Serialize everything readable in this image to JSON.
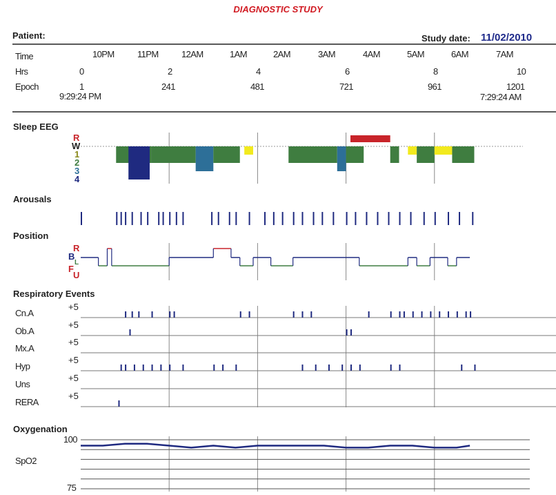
{
  "report_title": "DIAGNOSTIC STUDY",
  "patient_label": "Patient:",
  "study_date_label": "Study date:",
  "study_date": "11/02/2010",
  "timeline": {
    "row_labels": {
      "time": "Time",
      "hrs": "Hrs",
      "epoch": "Epoch"
    },
    "clock": [
      "10PM",
      "11PM",
      "12AM",
      "1AM",
      "2AM",
      "3AM",
      "4AM",
      "5AM",
      "6AM",
      "7AM"
    ],
    "hours": [
      "0",
      "2",
      "4",
      "6",
      "8",
      "10"
    ],
    "epochs": [
      "1",
      "241",
      "481",
      "721",
      "961",
      "1201"
    ],
    "start_time": "9:29:24 PM",
    "end_time": "7:29:24 AM"
  },
  "sections": {
    "sleep_eeg": "Sleep EEG",
    "arousals": "Arousals",
    "position": "Position",
    "respiratory": "Respiratory Events",
    "oxygenation": "Oxygenation"
  },
  "colors": {
    "red": "#c8242a",
    "navy": "#1f2a80",
    "green": "#3f7d40",
    "blue": "#2d6f98",
    "yellow": "#f2ea1e",
    "olive": "#8a8a1c",
    "grid": "#888888",
    "title": "#d11a22"
  },
  "chart_data": [
    {
      "type": "area",
      "title": "Sleep EEG",
      "ylabels": [
        "R",
        "W",
        "1",
        "2",
        "3",
        "4"
      ],
      "xlim": [
        0,
        10
      ],
      "xlabel": "Hrs",
      "segments": [
        {
          "from": 0.8,
          "to": 1.6,
          "stage": "2"
        },
        {
          "from": 1.08,
          "to": 1.56,
          "stage": "4"
        },
        {
          "from": 1.6,
          "to": 2.6,
          "stage": "2"
        },
        {
          "from": 2.6,
          "to": 3.0,
          "stage": "3"
        },
        {
          "from": 3.0,
          "to": 3.6,
          "stage": "2"
        },
        {
          "from": 3.7,
          "to": 3.9,
          "stage": "1"
        },
        {
          "from": 4.7,
          "to": 5.8,
          "stage": "2"
        },
        {
          "from": 5.8,
          "to": 6.0,
          "stage": "3"
        },
        {
          "from": 6.0,
          "to": 6.4,
          "stage": "2"
        },
        {
          "from": 6.1,
          "to": 7.0,
          "stage": "R"
        },
        {
          "from": 7.0,
          "to": 7.2,
          "stage": "2"
        },
        {
          "from": 7.4,
          "to": 7.6,
          "stage": "1"
        },
        {
          "from": 7.6,
          "to": 8.0,
          "stage": "2"
        },
        {
          "from": 8.0,
          "to": 8.4,
          "stage": "1"
        },
        {
          "from": 8.4,
          "to": 8.9,
          "stage": "2"
        }
      ]
    },
    {
      "type": "bar",
      "title": "Arousals",
      "xlabel": "Hrs",
      "xlim": [
        0,
        10
      ],
      "events": [
        0.0,
        0.8,
        0.9,
        1.0,
        1.15,
        1.35,
        1.5,
        1.75,
        1.85,
        2.0,
        2.15,
        2.3,
        2.95,
        3.1,
        3.35,
        3.5,
        3.8,
        4.15,
        4.35,
        4.55,
        4.8,
        5.0,
        5.25,
        5.45,
        5.7,
        6.0,
        6.2,
        6.45,
        6.7,
        6.95,
        7.2,
        7.45,
        7.75,
        8.0,
        8.3,
        8.55,
        8.85
      ]
    },
    {
      "type": "line",
      "title": "Position",
      "ylabels": [
        "R",
        "B",
        "L",
        "F",
        "U"
      ],
      "xlabel": "Hrs",
      "xlim": [
        0,
        10
      ],
      "steps": [
        {
          "from": 0.0,
          "to": 0.4,
          "pos": "B"
        },
        {
          "from": 0.4,
          "to": 0.6,
          "pos": "L"
        },
        {
          "from": 0.6,
          "to": 0.7,
          "pos": "R"
        },
        {
          "from": 0.7,
          "to": 2.0,
          "pos": "L"
        },
        {
          "from": 2.0,
          "to": 3.0,
          "pos": "B"
        },
        {
          "from": 3.0,
          "to": 3.4,
          "pos": "R"
        },
        {
          "from": 3.4,
          "to": 3.6,
          "pos": "B"
        },
        {
          "from": 3.6,
          "to": 3.9,
          "pos": "L"
        },
        {
          "from": 3.9,
          "to": 4.3,
          "pos": "B"
        },
        {
          "from": 4.3,
          "to": 4.8,
          "pos": "L"
        },
        {
          "from": 4.8,
          "to": 6.3,
          "pos": "B"
        },
        {
          "from": 6.3,
          "to": 7.4,
          "pos": "L"
        },
        {
          "from": 7.4,
          "to": 7.6,
          "pos": "B"
        },
        {
          "from": 7.6,
          "to": 7.9,
          "pos": "L"
        },
        {
          "from": 7.9,
          "to": 8.3,
          "pos": "B"
        },
        {
          "from": 8.3,
          "to": 8.5,
          "pos": "L"
        },
        {
          "from": 8.5,
          "to": 8.8,
          "pos": "B"
        }
      ]
    },
    {
      "type": "bar",
      "title": "Respiratory Events",
      "xlabel": "Hrs",
      "xlim": [
        0,
        10
      ],
      "scale_label": "+5",
      "series": [
        {
          "name": "Cn.A",
          "events": [
            1.0,
            1.15,
            1.3,
            1.6,
            2.0,
            2.1,
            3.6,
            3.8,
            4.8,
            5.0,
            5.2,
            6.5,
            7.0,
            7.2,
            7.3,
            7.5,
            7.7,
            7.9,
            8.1,
            8.3,
            8.5,
            8.7,
            8.8
          ]
        },
        {
          "name": "Ob.A",
          "events": [
            1.1,
            6.0,
            6.1
          ]
        },
        {
          "name": "Mx.A",
          "events": []
        },
        {
          "name": "Hyp",
          "events": [
            0.9,
            1.0,
            1.2,
            1.4,
            1.6,
            1.8,
            2.0,
            2.3,
            3.0,
            3.2,
            3.5,
            5.0,
            5.3,
            5.6,
            5.9,
            6.1,
            6.3,
            7.0,
            7.2,
            8.6,
            8.9
          ]
        },
        {
          "name": "Uns",
          "events": []
        },
        {
          "name": "RERA",
          "events": [
            0.85
          ]
        }
      ]
    },
    {
      "type": "line",
      "title": "Oxygenation",
      "series_name": "SpO2",
      "xlabel": "Hrs",
      "xlim": [
        0,
        10
      ],
      "ylim": [
        75,
        100
      ],
      "yticks": [
        100,
        75
      ],
      "x": [
        0.0,
        0.5,
        1.0,
        1.5,
        2.0,
        2.5,
        3.0,
        3.5,
        4.0,
        4.5,
        5.0,
        5.5,
        6.0,
        6.5,
        7.0,
        7.5,
        8.0,
        8.5,
        8.8
      ],
      "values": [
        97,
        97,
        98,
        98,
        97,
        96,
        97,
        96,
        97,
        97,
        97,
        97,
        96,
        96,
        97,
        97,
        96,
        96,
        97
      ]
    }
  ]
}
